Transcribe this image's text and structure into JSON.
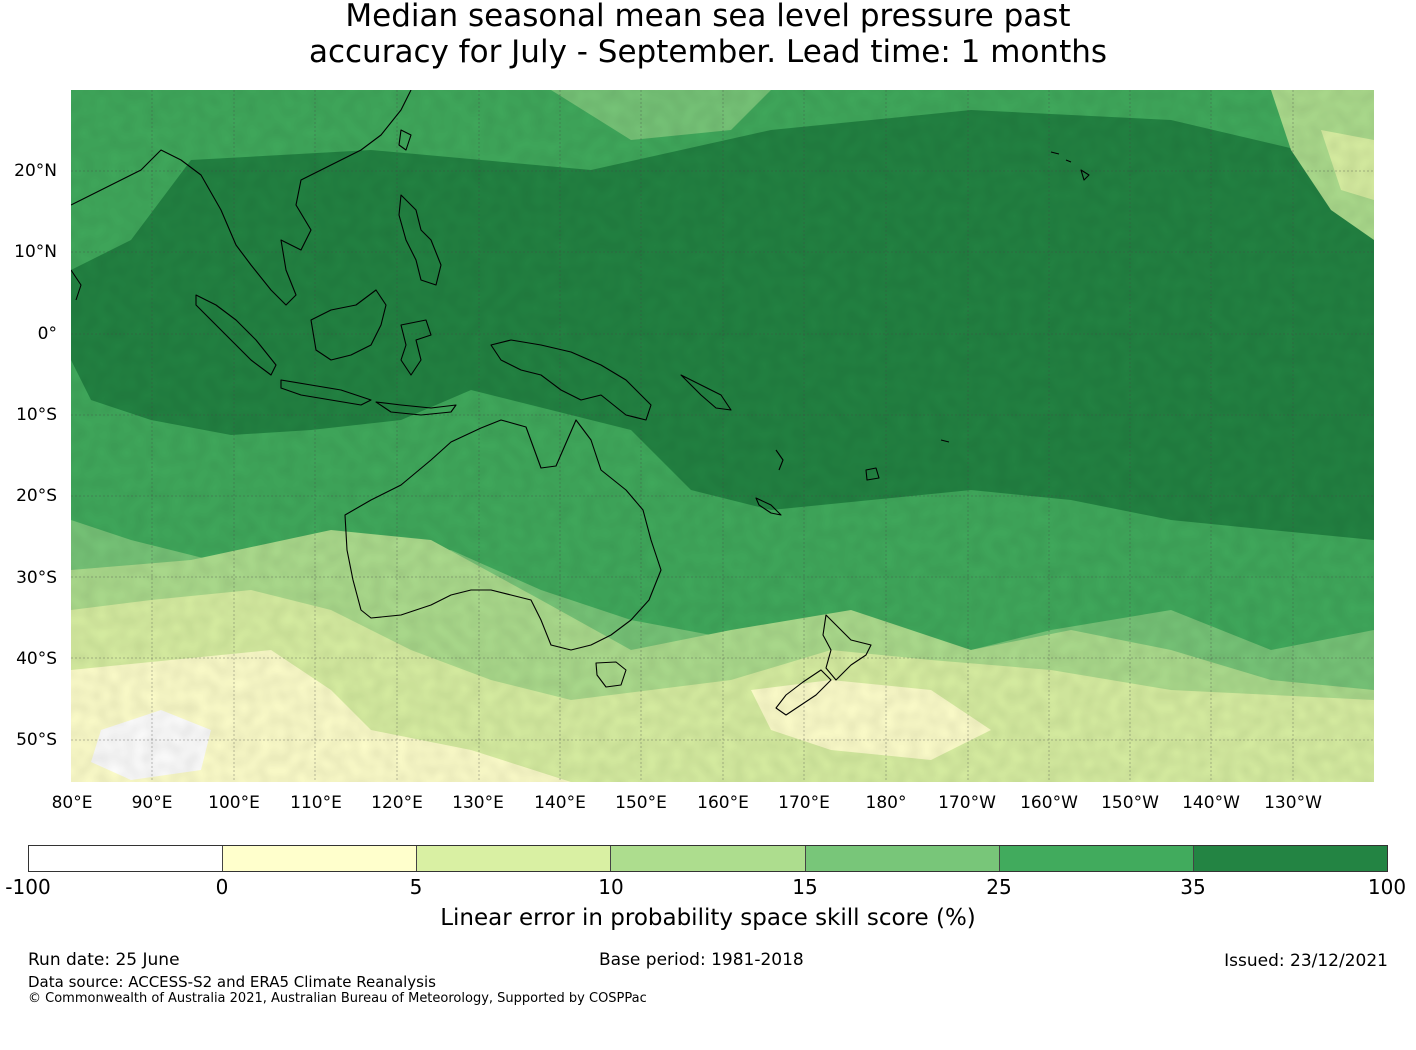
{
  "title_line1": "Median seasonal mean sea level pressure past",
  "title_line2": "accuracy for July - September. Lead time: 1 months",
  "lat_labels": [
    "20°N",
    "10°N",
    "0°",
    "10°S",
    "20°S",
    "30°S",
    "40°S",
    "50°S"
  ],
  "lon_labels": [
    "80°E",
    "90°E",
    "100°E",
    "110°E",
    "120°E",
    "130°E",
    "140°E",
    "150°E",
    "160°E",
    "170°E",
    "180°",
    "170°W",
    "160°W",
    "150°W",
    "140°W",
    "130°W"
  ],
  "colorbar": {
    "label": "Linear error in probability space skill score (%)",
    "ticks": [
      "-100",
      "0",
      "5",
      "10",
      "15",
      "25",
      "35",
      "100"
    ],
    "colors": [
      "#ffffff",
      "#ffffcc",
      "#d9f0a3",
      "#addd8e",
      "#78c679",
      "#41ab5d",
      "#238443"
    ]
  },
  "footer": {
    "run_date": "Run date: 25 June",
    "base_period": "Base period: 1981-2018",
    "issued": "Issued: 23/12/2021",
    "data_source": "Data source: ACCESS-S2 and ERA5 Climate Reanalysis",
    "copyright": "© Commonwealth of Australia 2021, Australian Bureau of Meteorology, Supported by COSPPac"
  }
}
